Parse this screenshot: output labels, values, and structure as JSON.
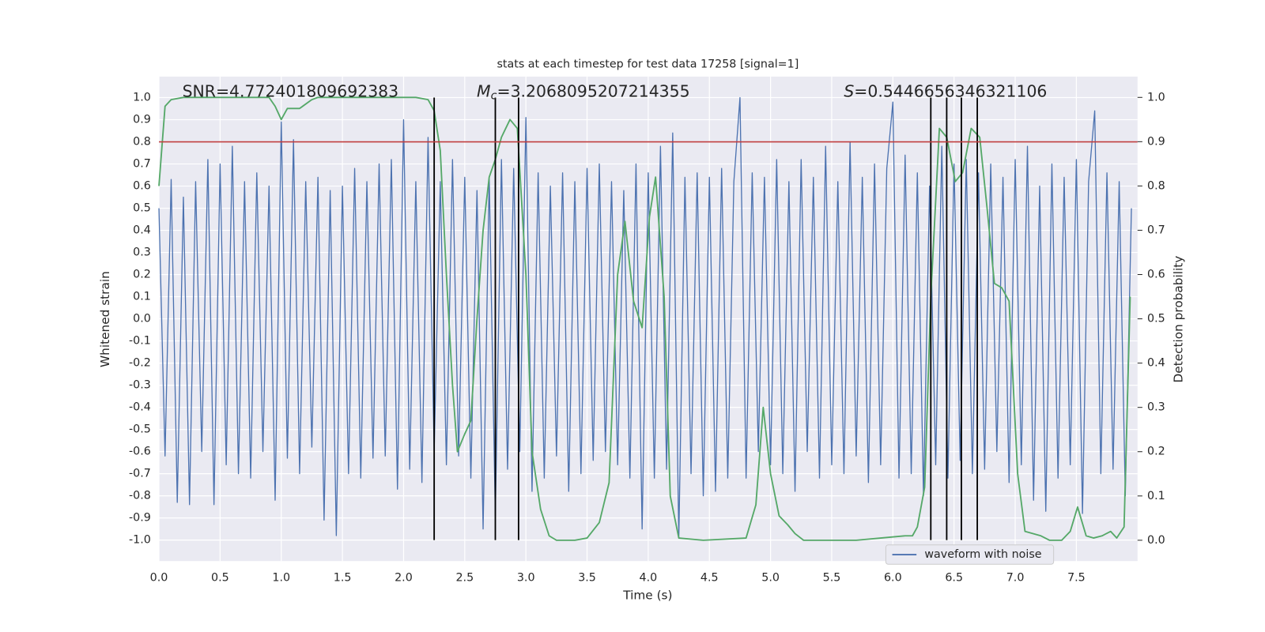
{
  "chart_data": {
    "type": "line",
    "title": "stats at each timestep for test data 17258 [signal=1]",
    "xlabel": "Time (s)",
    "ylabel": "Whitened strain",
    "y2label": "Detection probability",
    "xlim": [
      0,
      8.0
    ],
    "ylim": [
      -1.095,
      1.095
    ],
    "y2lim": [
      -0.047,
      1.047
    ],
    "xticks": [
      {
        "value": 0,
        "label": "0.0"
      },
      0.5,
      {
        "value": 1,
        "label": "1.0"
      },
      1.5,
      {
        "value": 2,
        "label": "2.0"
      },
      2.5,
      {
        "value": 3,
        "label": "3.0"
      },
      3.5,
      {
        "value": 4,
        "label": "4.0"
      },
      4.5,
      {
        "value": 5,
        "label": "5.0"
      },
      5.5,
      {
        "value": 6,
        "label": "6.0"
      },
      6.5,
      {
        "value": 7,
        "label": "7.0"
      },
      7.5
    ],
    "yticks": [
      {
        "value": -1,
        "label": "-1.0"
      },
      -0.9,
      -0.8,
      -0.7,
      -0.6,
      -0.5,
      -0.4,
      -0.3,
      -0.2,
      -0.1,
      {
        "value": 0,
        "label": "0.0"
      },
      0.1,
      0.2,
      0.3,
      0.4,
      0.5,
      0.6,
      0.7,
      0.8,
      0.9,
      {
        "value": 1,
        "label": "1.0"
      }
    ],
    "y2ticks": [
      {
        "value": 0,
        "label": "0.0"
      },
      0.1,
      0.2,
      0.3,
      0.4,
      0.5,
      0.6,
      0.7,
      0.8,
      0.9,
      {
        "value": 1,
        "label": "1.0"
      }
    ],
    "grid": true,
    "legend": "lower right",
    "annotations": [
      {
        "text": "SNR=4.772401809692383"
      },
      {
        "symbol": "M",
        "subscript": "c",
        "text": "=3.2068095207214355"
      },
      {
        "symbol": "S",
        "text": "=0.5446656346321106"
      }
    ],
    "hline": 0.8,
    "hline_color": "#c03d3e",
    "vlines": [
      2.25,
      2.75,
      2.94,
      6.31,
      6.44,
      6.56,
      6.69
    ],
    "vline_span": [
      -1,
      1
    ],
    "vline_color": "#000000",
    "series": [
      {
        "name": "waveform with noise",
        "color": "#4c72b0",
        "x": [
          0,
          0.05,
          0.1,
          0.15,
          0.2,
          0.25,
          0.3,
          0.35,
          0.4,
          0.45,
          0.5,
          0.55,
          0.6,
          0.65,
          0.7,
          0.75,
          0.8,
          0.85,
          0.9,
          0.95,
          1,
          1.05,
          1.1,
          1.15,
          1.2,
          1.25,
          1.3,
          1.35,
          1.4,
          1.45,
          1.5,
          1.55,
          1.6,
          1.65,
          1.7,
          1.75,
          1.8,
          1.85,
          1.9,
          1.95,
          2,
          2.05,
          2.1,
          2.15,
          2.2,
          2.25,
          2.3,
          2.35,
          2.4,
          2.45,
          2.5,
          2.55,
          2.6,
          2.65,
          2.7,
          2.75,
          2.8,
          2.85,
          2.9,
          2.95,
          3,
          3.05,
          3.1,
          3.15,
          3.2,
          3.25,
          3.3,
          3.35,
          3.4,
          3.45,
          3.5,
          3.55,
          3.6,
          3.65,
          3.7,
          3.75,
          3.8,
          3.85,
          3.9,
          3.95,
          4,
          4.05,
          4.1,
          4.15,
          4.2,
          4.25,
          4.3,
          4.35,
          4.4,
          4.45,
          4.5,
          4.55,
          4.6,
          4.65,
          4.7,
          4.75,
          4.8,
          4.85,
          4.9,
          4.95,
          5,
          5.05,
          5.1,
          5.15,
          5.2,
          5.25,
          5.3,
          5.35,
          5.4,
          5.45,
          5.5,
          5.55,
          5.6,
          5.65,
          5.7,
          5.75,
          5.8,
          5.85,
          5.9,
          5.95,
          6,
          6.05,
          6.1,
          6.15,
          6.2,
          6.25,
          6.3,
          6.35,
          6.4,
          6.45,
          6.5,
          6.55,
          6.6,
          6.65,
          6.7,
          6.75,
          6.8,
          6.85,
          6.9,
          6.95,
          7,
          7.05,
          7.1,
          7.15,
          7.2,
          7.25,
          7.3,
          7.35,
          7.4,
          7.45,
          7.5,
          7.55,
          7.6,
          7.65,
          7.7,
          7.75,
          7.8,
          7.85,
          7.9,
          7.95
        ],
        "values": [
          0.5,
          -0.62,
          0.63,
          -0.83,
          0.55,
          -0.84,
          0.62,
          -0.6,
          0.72,
          -0.84,
          0.7,
          -0.66,
          0.78,
          -0.7,
          0.62,
          -0.72,
          0.66,
          -0.6,
          0.6,
          -0.82,
          0.89,
          -0.63,
          0.81,
          -0.7,
          0.62,
          -0.58,
          0.64,
          -0.91,
          0.58,
          -0.98,
          0.6,
          -0.7,
          0.68,
          -0.72,
          0.62,
          -0.63,
          0.7,
          -0.62,
          0.72,
          -0.77,
          0.9,
          -0.68,
          0.62,
          -0.74,
          0.82,
          -0.6,
          0.62,
          -0.66,
          0.72,
          -0.62,
          0.64,
          -0.72,
          0.58,
          -0.95,
          0.64,
          -0.89,
          0.72,
          -0.68,
          0.68,
          -0.6,
          0.91,
          -0.78,
          0.66,
          -0.72,
          0.6,
          -0.62,
          0.66,
          -0.78,
          0.62,
          -0.7,
          0.68,
          -0.64,
          0.7,
          -0.6,
          0.62,
          -0.66,
          0.58,
          -0.72,
          0.7,
          -0.95,
          0.66,
          -0.72,
          0.78,
          -0.68,
          0.84,
          -0.99,
          0.64,
          -0.7,
          0.66,
          -0.8,
          0.64,
          -0.78,
          0.68,
          -0.72,
          0.62,
          1.0,
          -0.72,
          0.66,
          -0.6,
          0.64,
          -0.66,
          0.72,
          -0.7,
          0.62,
          -0.78,
          0.72,
          -0.6,
          0.64,
          -0.72,
          0.78,
          -0.66,
          0.62,
          -0.7,
          0.8,
          -0.62,
          0.64,
          -0.74,
          0.7,
          -0.66,
          0.68,
          0.98,
          -0.72,
          0.74,
          -0.7,
          0.66,
          -0.8,
          0.6,
          -0.66,
          0.78,
          -0.72,
          0.7,
          -0.64,
          0.72,
          -0.7,
          0.66,
          -0.68,
          0.7,
          -0.6,
          0.64,
          -0.74,
          0.72,
          -0.66,
          0.78,
          -0.82,
          0.6,
          -0.87,
          0.7,
          -0.72,
          0.64,
          -0.66,
          0.72,
          -0.88,
          0.62,
          0.94,
          -0.7,
          0.66,
          -0.68,
          0.62,
          -0.8,
          0.5
        ]
      },
      {
        "color": "#55a868",
        "axis": "y2",
        "x": [
          0,
          0.05,
          0.1,
          0.2,
          0.9,
          0.95,
          1.0,
          1.05,
          1.15,
          1.25,
          1.3,
          2.1,
          2.2,
          2.25,
          2.3,
          2.35,
          2.4,
          2.44,
          2.5,
          2.55,
          2.6,
          2.65,
          2.7,
          2.75,
          2.8,
          2.87,
          2.93,
          3.0,
          3.05,
          3.12,
          3.19,
          3.25,
          3.4,
          3.5,
          3.6,
          3.68,
          3.75,
          3.81,
          3.88,
          3.95,
          4.01,
          4.06,
          4.13,
          4.18,
          4.25,
          4.45,
          4.8,
          4.88,
          4.94,
          5.0,
          5.07,
          5.14,
          5.2,
          5.27,
          5.7,
          5.9,
          6.1,
          6.16,
          6.2,
          6.26,
          6.31,
          6.38,
          6.44,
          6.51,
          6.57,
          6.64,
          6.71,
          6.77,
          6.83,
          6.89,
          6.95,
          7.02,
          7.08,
          7.21,
          7.28,
          7.38,
          7.45,
          7.51,
          7.58,
          7.64,
          7.71,
          7.78,
          7.83,
          7.89,
          7.94
        ],
        "values": [
          0.8,
          0.98,
          0.995,
          1.0,
          1.0,
          0.98,
          0.95,
          0.975,
          0.975,
          0.995,
          1.0,
          1.0,
          0.995,
          0.97,
          0.88,
          0.6,
          0.35,
          0.2,
          0.24,
          0.27,
          0.5,
          0.7,
          0.82,
          0.86,
          0.91,
          0.95,
          0.93,
          0.6,
          0.2,
          0.07,
          0.01,
          0.0,
          0.0,
          0.005,
          0.04,
          0.13,
          0.6,
          0.72,
          0.54,
          0.48,
          0.73,
          0.82,
          0.55,
          0.1,
          0.005,
          0.0,
          0.005,
          0.08,
          0.3,
          0.15,
          0.055,
          0.035,
          0.015,
          0.0,
          0.0,
          0.005,
          0.01,
          0.01,
          0.03,
          0.12,
          0.55,
          0.93,
          0.91,
          0.81,
          0.83,
          0.93,
          0.91,
          0.75,
          0.58,
          0.57,
          0.54,
          0.15,
          0.02,
          0.01,
          0.0,
          0.0,
          0.02,
          0.075,
          0.01,
          0.005,
          0.01,
          0.02,
          0.005,
          0.03,
          0.55
        ]
      }
    ]
  }
}
